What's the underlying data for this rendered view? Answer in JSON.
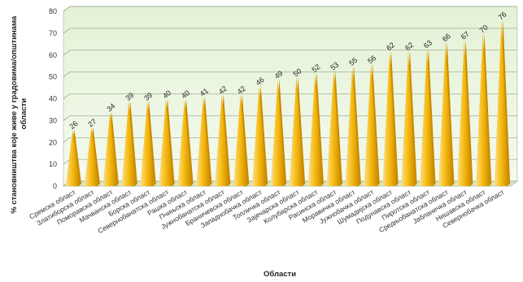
{
  "chart_data": {
    "type": "bar",
    "title": "",
    "xlabel": "Области",
    "ylabel_line1": "% становништва које живе у градовима/општинама",
    "ylabel_line2": "области",
    "ylim": [
      0,
      80
    ],
    "yticks": [
      0,
      10,
      20,
      30,
      40,
      50,
      60,
      70,
      80
    ],
    "grid": true,
    "legend": "none",
    "bar_color": "#f5b81c",
    "categories": [
      "Сремска област",
      "Златиборска област",
      "Поморавска област",
      "Мачванска област",
      "Борска област",
      "Севернобанатска област",
      "Рашка област",
      "Пчињска област",
      "Јужнобанатска област",
      "Браничевска област",
      "Западнобачка област",
      "Топличка област",
      "Зајечарска област",
      "Колубарска област",
      "Расинска област",
      "Моравичка област",
      "Јужнобачка област",
      "Шумадијска област",
      "Подунавска област",
      "Пиротска област",
      "Средњобанатска област",
      "Јабланичка област",
      "Нишавска област",
      "Севернобачка област"
    ],
    "values": [
      26,
      27,
      34,
      39,
      39,
      40,
      40,
      41,
      42,
      42,
      46,
      49,
      50,
      52,
      53,
      55,
      56,
      62,
      62,
      63,
      66,
      67,
      70,
      76
    ]
  }
}
